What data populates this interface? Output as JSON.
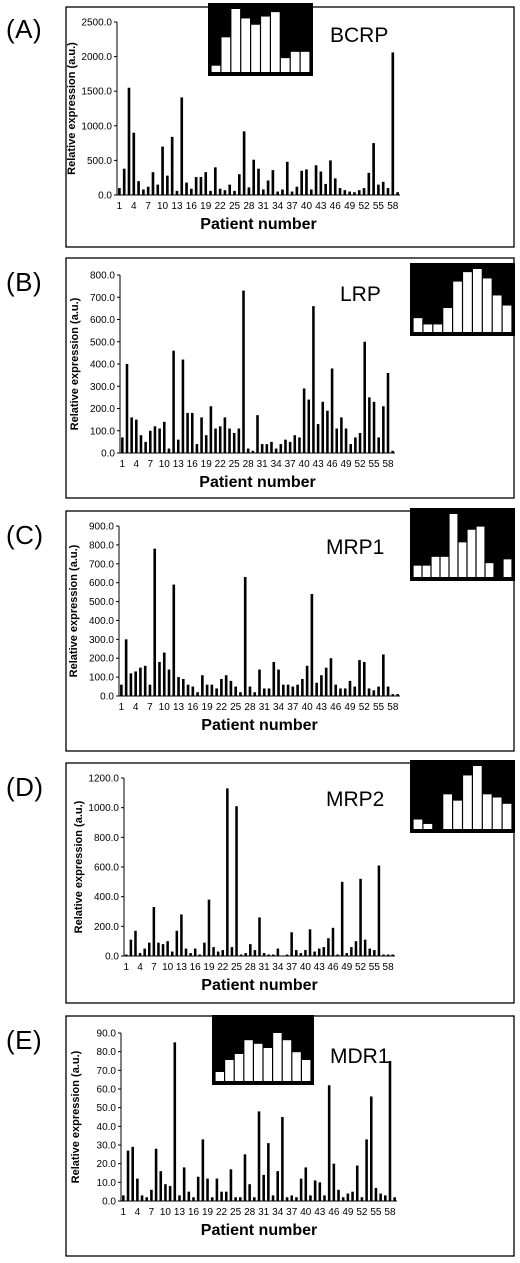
{
  "axis_labels": {
    "y": "Relative expression (a.u.)",
    "x": "Patient number"
  },
  "colors": {
    "bar": "#000000",
    "inset_background": "#000000",
    "inset_bar": "#ffffff"
  },
  "chart_data": [
    {
      "letter": "(A)",
      "gene": "BCRP",
      "type": "bar",
      "xlabel": "Patient number",
      "ylabel": "Relative expression (a.u.)",
      "ylim": [
        0,
        2500
      ],
      "yticks": [
        "0.0",
        "500.0",
        "1000.0",
        "1500.0",
        "2000.0",
        "2500.0"
      ],
      "xticks": [
        "1",
        "4",
        "7",
        "10",
        "13",
        "16",
        "19",
        "22",
        "25",
        "28",
        "31",
        "34",
        "37",
        "40",
        "43",
        "46",
        "49",
        "52",
        "55",
        "58"
      ],
      "values": [
        100,
        380,
        1550,
        900,
        200,
        80,
        120,
        330,
        150,
        700,
        280,
        840,
        60,
        1410,
        180,
        90,
        260,
        260,
        330,
        60,
        400,
        90,
        70,
        150,
        60,
        300,
        920,
        110,
        510,
        380,
        80,
        210,
        360,
        50,
        80,
        480,
        50,
        120,
        350,
        370,
        80,
        430,
        340,
        160,
        500,
        240,
        100,
        70,
        50,
        40,
        70,
        100,
        320,
        750,
        150,
        190,
        100,
        2060,
        40
      ],
      "inset": {
        "position": "top-center",
        "values": [
          0.1,
          0.55,
          1.0,
          0.85,
          0.75,
          0.88,
          0.95,
          0.22,
          0.32,
          0.32
        ]
      }
    },
    {
      "letter": "(B)",
      "gene": "LRP",
      "type": "bar",
      "xlabel": "Patient number",
      "ylabel": "Relative expression (a.u.)",
      "ylim": [
        0,
        800
      ],
      "yticks": [
        "0.0",
        "100.0",
        "200.0",
        "300.0",
        "400.0",
        "500.0",
        "600.0",
        "700.0",
        "800.0"
      ],
      "xticks": [
        "1",
        "4",
        "7",
        "10",
        "13",
        "16",
        "19",
        "22",
        "25",
        "28",
        "31",
        "34",
        "37",
        "40",
        "43",
        "46",
        "49",
        "52",
        "55",
        "58"
      ],
      "values": [
        70,
        400,
        160,
        150,
        80,
        50,
        100,
        120,
        110,
        140,
        20,
        460,
        60,
        420,
        180,
        180,
        40,
        160,
        80,
        210,
        110,
        120,
        160,
        110,
        90,
        110,
        730,
        20,
        10,
        170,
        40,
        40,
        50,
        20,
        40,
        60,
        50,
        80,
        70,
        290,
        240,
        660,
        130,
        230,
        190,
        380,
        110,
        160,
        110,
        40,
        70,
        90,
        500,
        250,
        230,
        70,
        210,
        360,
        10
      ],
      "inset": {
        "position": "top-right",
        "values": [
          0.22,
          0.12,
          0.12,
          0.38,
          0.8,
          0.95,
          1.0,
          0.85,
          0.58,
          0.42
        ]
      }
    },
    {
      "letter": "(C)",
      "gene": "MRP1",
      "type": "bar",
      "xlabel": "Patient number",
      "ylabel": "Relative expression (a.u.)",
      "ylim": [
        0,
        900
      ],
      "yticks": [
        "0.0",
        "100.0",
        "200.0",
        "300.0",
        "400.0",
        "500.0",
        "600.0",
        "700.0",
        "800.0",
        "900.0"
      ],
      "xticks": [
        "1",
        "4",
        "7",
        "10",
        "13",
        "16",
        "19",
        "22",
        "25",
        "28",
        "31",
        "34",
        "37",
        "40",
        "43",
        "46",
        "49",
        "52",
        "55",
        "58"
      ],
      "values": [
        60,
        300,
        120,
        130,
        150,
        160,
        60,
        780,
        180,
        230,
        140,
        590,
        100,
        90,
        60,
        50,
        20,
        110,
        60,
        60,
        40,
        90,
        110,
        80,
        50,
        20,
        630,
        50,
        20,
        140,
        40,
        40,
        180,
        140,
        60,
        60,
        50,
        60,
        90,
        160,
        540,
        70,
        110,
        150,
        200,
        60,
        40,
        40,
        80,
        50,
        190,
        180,
        40,
        30,
        50,
        220,
        50,
        10,
        10
      ],
      "inset": {
        "position": "top-right",
        "values": [
          0.18,
          0.18,
          0.32,
          0.32,
          1.0,
          0.55,
          0.75,
          0.8,
          0.22,
          0.0,
          0.28
        ]
      }
    },
    {
      "letter": "(D)",
      "gene": "MRP2",
      "type": "bar",
      "xlabel": "Patient number",
      "ylabel": "Relative expression (a.u.)",
      "ylim": [
        0,
        1200
      ],
      "yticks": [
        "0.0",
        "200.0",
        "400.0",
        "600.0",
        "800.0",
        "1000.0",
        "1200.0"
      ],
      "xticks": [
        "1",
        "4",
        "7",
        "10",
        "13",
        "16",
        "19",
        "22",
        "25",
        "28",
        "31",
        "34",
        "37",
        "40",
        "43",
        "46",
        "49",
        "52",
        "55",
        "58"
      ],
      "values": [
        10,
        110,
        170,
        20,
        50,
        90,
        330,
        90,
        80,
        100,
        30,
        170,
        280,
        50,
        20,
        50,
        10,
        90,
        380,
        60,
        30,
        40,
        1130,
        60,
        1010,
        10,
        20,
        80,
        40,
        260,
        20,
        10,
        10,
        50,
        0,
        10,
        160,
        40,
        20,
        40,
        180,
        30,
        50,
        60,
        120,
        190,
        10,
        500,
        20,
        60,
        100,
        520,
        110,
        50,
        40,
        610,
        10,
        10,
        10
      ],
      "inset": {
        "position": "top-right",
        "values": [
          0.15,
          0.08,
          0.0,
          0.55,
          0.45,
          0.85,
          1.0,
          0.55,
          0.5,
          0.4
        ]
      }
    },
    {
      "letter": "(E)",
      "gene": "MDR1",
      "type": "bar",
      "xlabel": "Patient number",
      "ylabel": "Relative expression (a.u.)",
      "ylim": [
        0,
        90
      ],
      "yticks": [
        "0.0",
        "10.0",
        "20.0",
        "30.0",
        "40.0",
        "50.0",
        "60.0",
        "70.0",
        "80.0",
        "90.0"
      ],
      "xticks": [
        "1",
        "4",
        "7",
        "10",
        "13",
        "16",
        "19",
        "22",
        "25",
        "28",
        "31",
        "34",
        "37",
        "40",
        "43",
        "46",
        "49",
        "52",
        "55",
        "58"
      ],
      "values": [
        3,
        27,
        29,
        12,
        3,
        2,
        6,
        28,
        16,
        9,
        8,
        85,
        3,
        18,
        5,
        2,
        13,
        33,
        12,
        2,
        12,
        5,
        5,
        17,
        2,
        2,
        25,
        9,
        2,
        48,
        14,
        31,
        3,
        16,
        45,
        2,
        3,
        2,
        12,
        18,
        3,
        11,
        10,
        3,
        62,
        20,
        6,
        2,
        4,
        5,
        19,
        2,
        33,
        56,
        7,
        4,
        3,
        75,
        2
      ],
      "inset": {
        "position": "top-center",
        "values": [
          0.15,
          0.35,
          0.45,
          0.68,
          0.62,
          0.55,
          0.8,
          0.68,
          0.48,
          0.35
        ]
      }
    }
  ]
}
